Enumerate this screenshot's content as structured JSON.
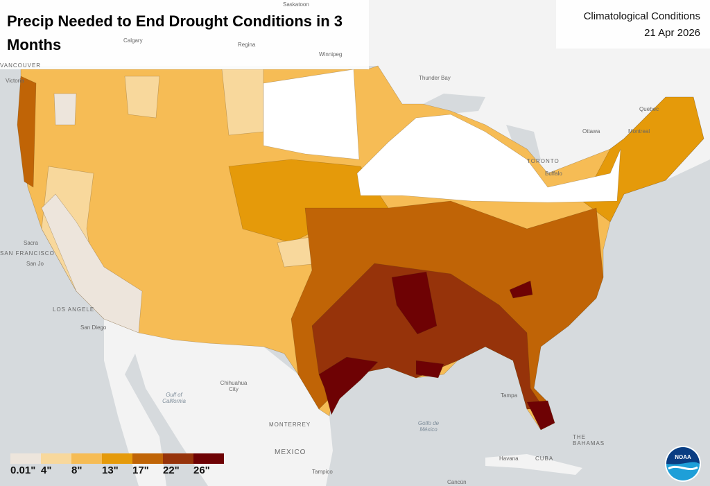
{
  "title": "Precip Needed to End Drought Conditions in 3 Months",
  "subtitle": "Climatological Conditions",
  "date": "21 Apr 2026",
  "legend": {
    "items": [
      {
        "label": "0.01\"",
        "color": "#ede5dc"
      },
      {
        "label": "4\"",
        "color": "#f8d89c"
      },
      {
        "label": "8\"",
        "color": "#f6bc55"
      },
      {
        "label": "13\"",
        "color": "#e59a0a"
      },
      {
        "label": "17\"",
        "color": "#c06406"
      },
      {
        "label": "22\"",
        "color": "#96330a"
      },
      {
        "label": "26\"",
        "color": "#6e0204"
      }
    ]
  },
  "basemap_labels": {
    "saskatoon": "Saskatoon",
    "calgary": "Calgary",
    "regina": "Regina",
    "winnipeg": "Winnipeg",
    "vancouver": "VANCOUVER",
    "victoria": "Victoria",
    "thunder_bay": "Thunder Bay",
    "quebec": "Quebec",
    "ottawa": "Ottawa",
    "montreal": "Montreal",
    "toronto": "TORONTO",
    "buffalo": "Buffalo",
    "sacramento": "Sacra",
    "san_francisco": "SAN FRANCISCO",
    "san_jose": "San Jo",
    "los_angeles": "LOS ANGELE",
    "san_diego": "San Diego",
    "gulf_of_california": "Gulf of California",
    "chihuahua": "Chihuahua City",
    "monterrey": "MONTERREY",
    "mexico": "MEXICO",
    "tampico": "Tampico",
    "golfo": "Golfo de México",
    "tampa": "Tampa",
    "havana": "Havana",
    "cuba": "CUBA",
    "bahamas": "THE BAHAMAS",
    "cancun": "Cancún"
  },
  "logo": "NOAA"
}
